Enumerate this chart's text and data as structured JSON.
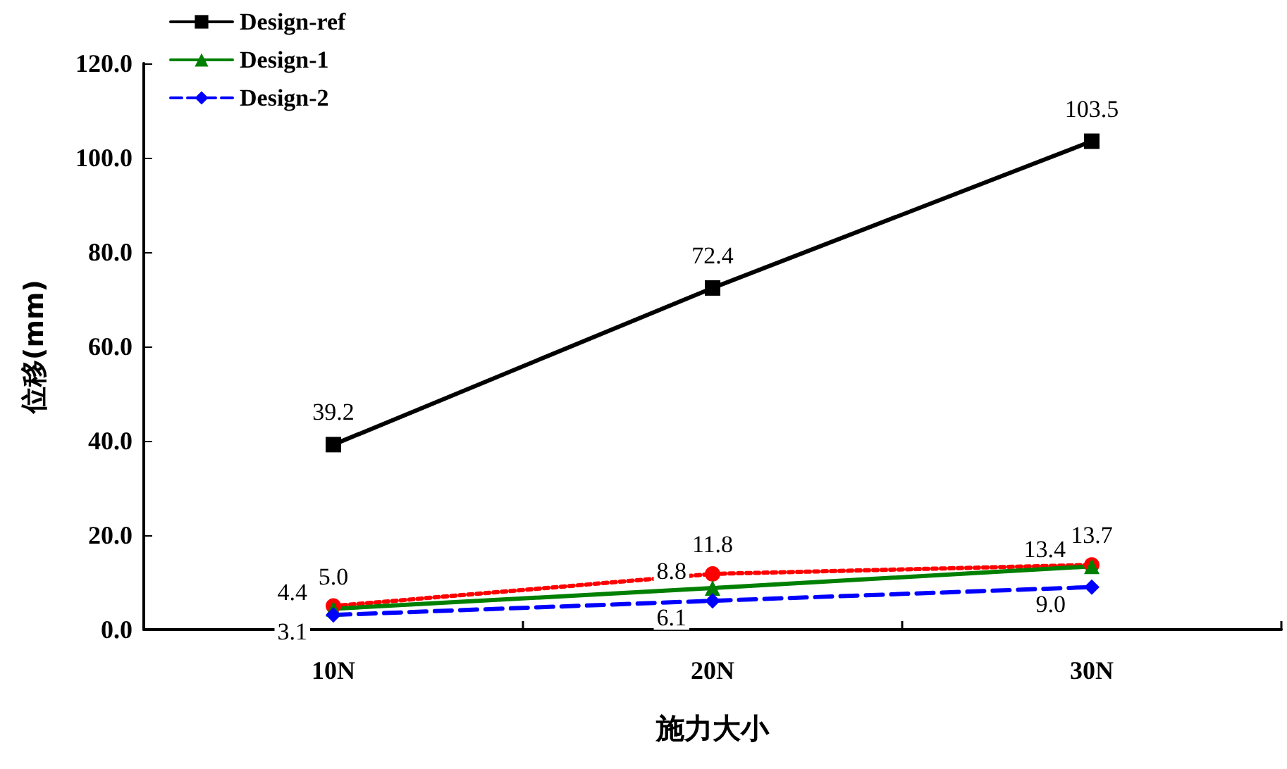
{
  "chart_data": {
    "type": "line",
    "xlabel": "施力大小",
    "ylabel": "位移(mm)",
    "categories": [
      "10N",
      "20N",
      "30N"
    ],
    "series": [
      {
        "color": "#ff0000",
        "marker": "circle",
        "line_style": "dotted",
        "values": [
          5.0,
          11.8,
          13.7
        ],
        "value_labels": [
          "5.0",
          "11.8",
          "13.7"
        ]
      },
      {
        "name": "Design-ref",
        "color": "#000000",
        "marker": "square",
        "line_style": "solid",
        "values": [
          39.2,
          72.4,
          103.5
        ],
        "value_labels": [
          "39.2",
          "72.4",
          "103.5"
        ]
      },
      {
        "name": "Design-1",
        "color": "#008000",
        "marker": "triangle",
        "line_style": "solid",
        "values": [
          4.4,
          8.8,
          13.4
        ],
        "value_labels": [
          "4.4",
          "8.8",
          "13.4"
        ]
      },
      {
        "name": "Design-2",
        "color": "#0000ff",
        "marker": "diamond",
        "line_style": "dashed",
        "values": [
          3.1,
          6.1,
          9.0
        ],
        "value_labels": [
          "3.1",
          "6.1",
          "9.0"
        ]
      }
    ],
    "ylim": [
      0,
      120
    ],
    "yticks": [
      {
        "value": 0,
        "label": "0.0"
      },
      {
        "value": 20,
        "label": "20.0"
      },
      {
        "value": 40,
        "label": "40.0"
      },
      {
        "value": 60,
        "label": "60.0"
      },
      {
        "value": 80,
        "label": "80.0"
      },
      {
        "value": 100,
        "label": "100.0"
      },
      {
        "value": 120,
        "label": "120.0"
      }
    ],
    "grid": false,
    "legend": "top left"
  }
}
